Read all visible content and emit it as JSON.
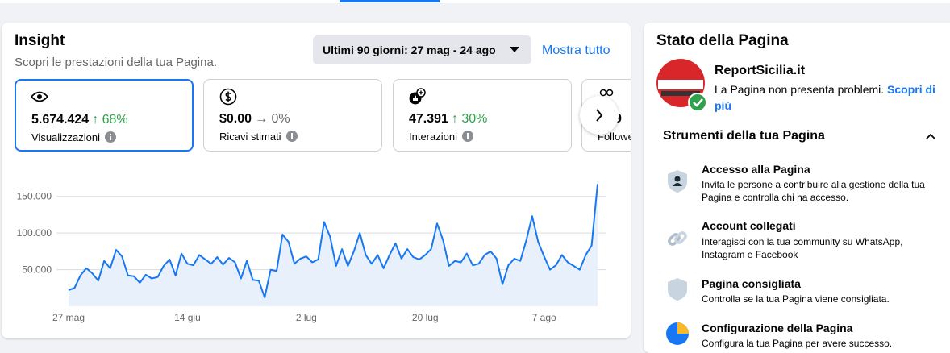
{
  "insight": {
    "title": "Insight",
    "subtitle": "Scopri le prestazioni della tua Pagina.",
    "date_range": "Ultimi 90 giorni: 27 mag - 24 ago",
    "show_all": "Mostra tutto",
    "metrics": [
      {
        "value": "5.674.424",
        "change": "↑ 68%",
        "label": "Visualizzazioni"
      },
      {
        "value": "$0.00",
        "change": "→ 0%",
        "label": "Ricavi stimati"
      },
      {
        "value": "47.391",
        "change": "↑ 30%",
        "label": "Interazioni"
      },
      {
        "value": "9",
        "label": "Followe"
      }
    ]
  },
  "chart_data": {
    "type": "area",
    "color": "#1877f2",
    "fill": "#e7f0fb",
    "grid": true,
    "categories": [
      "27 mag",
      null,
      null,
      null,
      null,
      null,
      null,
      null,
      null,
      null,
      null,
      null,
      null,
      null,
      null,
      null,
      null,
      null,
      null,
      null,
      "14 giu",
      null,
      null,
      null,
      null,
      null,
      null,
      null,
      null,
      null,
      null,
      null,
      null,
      null,
      null,
      null,
      null,
      null,
      null,
      null,
      "2 lug",
      null,
      null,
      null,
      null,
      null,
      null,
      null,
      null,
      null,
      null,
      null,
      null,
      null,
      null,
      null,
      null,
      null,
      null,
      null,
      "20 lug",
      null,
      null,
      null,
      null,
      null,
      null,
      null,
      null,
      null,
      null,
      null,
      null,
      null,
      null,
      null,
      null,
      null,
      null,
      null,
      "7 ago",
      null,
      null,
      null,
      null,
      null,
      null,
      null,
      null,
      null
    ],
    "values": [
      22000,
      25000,
      42000,
      52000,
      45000,
      35000,
      62000,
      52000,
      77000,
      68000,
      42000,
      41000,
      32000,
      43000,
      38000,
      40000,
      55000,
      64000,
      42000,
      72000,
      58000,
      56000,
      70000,
      64000,
      58000,
      67000,
      57000,
      66000,
      60000,
      38000,
      62000,
      36000,
      35000,
      12000,
      50000,
      48000,
      98000,
      88000,
      58000,
      65000,
      68000,
      60000,
      64000,
      115000,
      95000,
      55000,
      78000,
      55000,
      75000,
      100000,
      70000,
      58000,
      70000,
      52000,
      70000,
      86000,
      65000,
      78000,
      67000,
      64000,
      70000,
      78000,
      113000,
      90000,
      55000,
      62000,
      60000,
      72000,
      56000,
      58000,
      70000,
      75000,
      65000,
      30000,
      56000,
      65000,
      62000,
      90000,
      123000,
      88000,
      68000,
      50000,
      56000,
      70000,
      60000,
      55000,
      50000,
      70000,
      83000,
      167000
    ],
    "ylim": [
      0,
      175000
    ],
    "yticks": [
      {
        "value": 50000,
        "label": "50.000"
      },
      {
        "value": 100000,
        "label": "100.000"
      },
      {
        "value": 150000,
        "label": "150.000"
      }
    ]
  },
  "page_status": {
    "title": "Stato della Pagina",
    "page_name": "ReportSicilia.it",
    "status": "La Pagina non presenta problemi.",
    "learn_more": "Scopri di più",
    "tools_title": "Strumenti della tua Pagina",
    "tools": [
      {
        "title": "Accesso alla Pagina",
        "description": "Invita le persone a contribuire alla gestione della tua Pagina e controlla chi ha accesso."
      },
      {
        "title": "Account collegati",
        "description": "Interagisci con la tua community su WhatsApp, Instagram e Facebook"
      },
      {
        "title": "Pagina consigliata",
        "description": "Controlla se la tua Pagina viene consigliata."
      },
      {
        "title": "Configurazione della Pagina",
        "description": "Configura la tua Pagina per avere successo."
      }
    ]
  }
}
